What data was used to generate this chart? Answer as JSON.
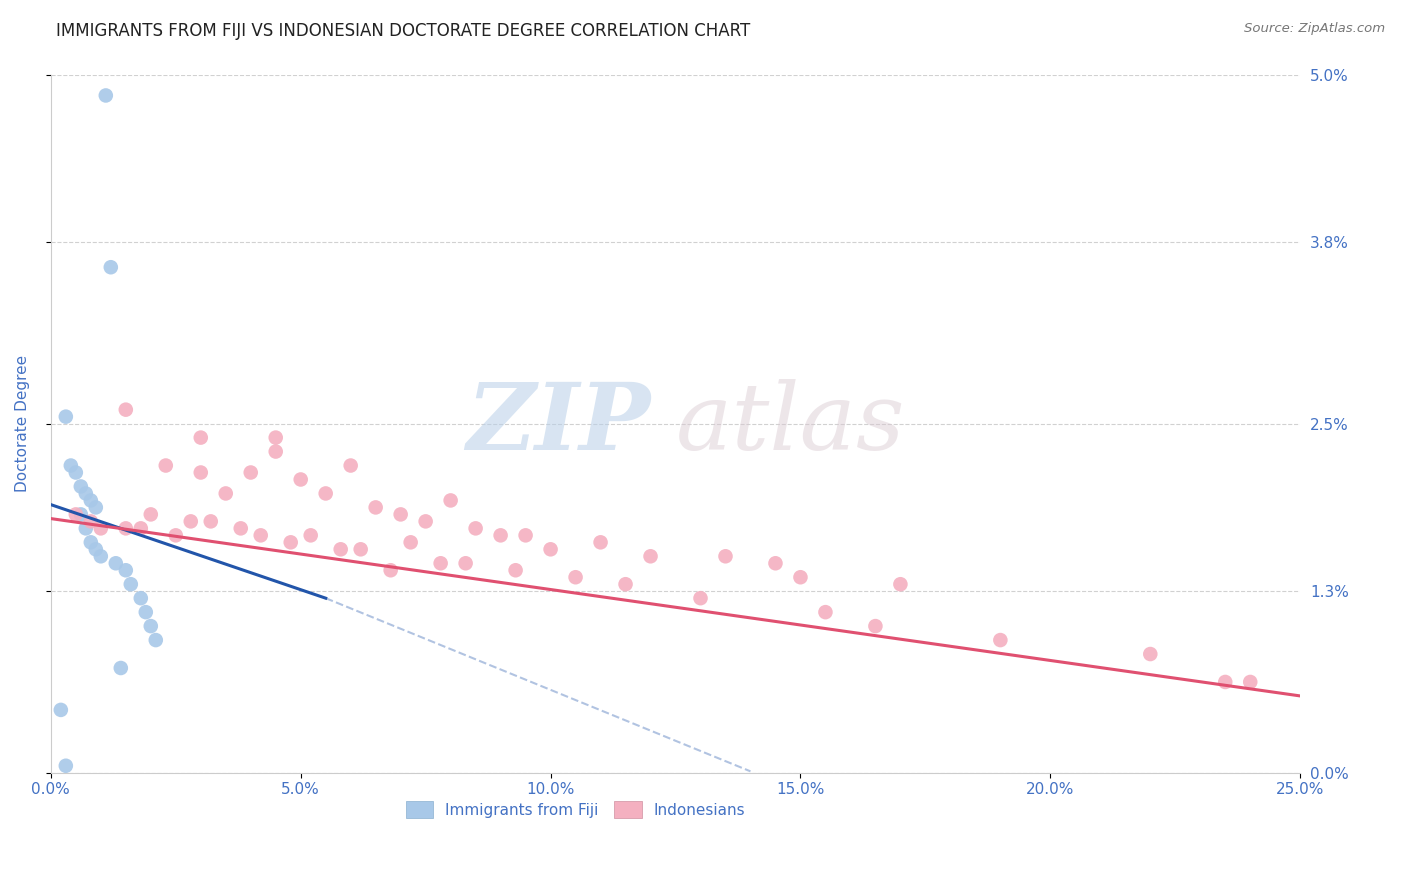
{
  "title": "IMMIGRANTS FROM FIJI VS INDONESIAN DOCTORATE DEGREE CORRELATION CHART",
  "source": "Source: ZipAtlas.com",
  "ylabel_label": "Doctorate Degree",
  "x_tick_vals": [
    0.0,
    5.0,
    10.0,
    15.0,
    20.0,
    25.0
  ],
  "y_tick_vals": [
    0.0,
    1.3,
    2.5,
    3.8,
    5.0
  ],
  "y_right_labels": [
    "0.0%",
    "1.3%",
    "2.5%",
    "3.8%",
    "5.0%"
  ],
  "xlim": [
    0.0,
    25.0
  ],
  "ylim": [
    0.0,
    5.0
  ],
  "fiji_color": "#a8c8e8",
  "indonesian_color": "#f4b0c0",
  "fiji_line_color": "#2255aa",
  "indonesian_line_color": "#e05070",
  "fiji_line_x0": 0.0,
  "fiji_line_y0": 1.92,
  "fiji_line_x1": 5.5,
  "fiji_line_y1": 1.25,
  "fiji_dash_x0": 5.5,
  "fiji_dash_y0": 1.25,
  "fiji_dash_x1": 14.0,
  "fiji_dash_y1": 0.01,
  "indonesian_line_x0": 0.0,
  "indonesian_line_y0": 1.82,
  "indonesian_line_x1": 25.0,
  "indonesian_line_y1": 0.55,
  "watermark_zip": "ZIP",
  "watermark_atlas": "atlas",
  "fiji_scatter_x": [
    1.1,
    1.2,
    0.3,
    0.4,
    0.5,
    0.6,
    0.7,
    0.8,
    0.9,
    0.6,
    0.7,
    0.8,
    0.9,
    1.0,
    1.3,
    1.5,
    1.6,
    1.8,
    1.9,
    2.0,
    2.1,
    1.4,
    0.2,
    0.3
  ],
  "fiji_scatter_y": [
    4.85,
    3.62,
    2.55,
    2.2,
    2.15,
    2.05,
    2.0,
    1.95,
    1.9,
    1.85,
    1.75,
    1.65,
    1.6,
    1.55,
    1.5,
    1.45,
    1.35,
    1.25,
    1.15,
    1.05,
    0.95,
    0.75,
    0.45,
    0.05
  ],
  "indonesian_scatter_x": [
    1.5,
    3.0,
    3.0,
    4.0,
    4.5,
    5.0,
    5.5,
    6.0,
    6.5,
    7.0,
    7.5,
    8.0,
    8.5,
    9.0,
    9.5,
    10.0,
    11.0,
    12.0,
    13.5,
    14.5,
    15.0,
    17.0,
    22.0,
    24.0,
    0.5,
    0.8,
    1.0,
    1.5,
    1.8,
    2.0,
    2.5,
    2.8,
    3.2,
    3.8,
    4.2,
    4.8,
    5.2,
    5.8,
    6.2,
    7.2,
    7.8,
    8.3,
    9.3,
    10.5,
    11.5,
    13.0,
    15.5,
    16.5,
    19.0,
    23.5,
    2.3,
    3.5,
    4.5,
    6.8
  ],
  "indonesian_scatter_y": [
    2.6,
    2.4,
    2.15,
    2.15,
    2.3,
    2.1,
    2.0,
    2.2,
    1.9,
    1.85,
    1.8,
    1.95,
    1.75,
    1.7,
    1.7,
    1.6,
    1.65,
    1.55,
    1.55,
    1.5,
    1.4,
    1.35,
    0.85,
    0.65,
    1.85,
    1.8,
    1.75,
    1.75,
    1.75,
    1.85,
    1.7,
    1.8,
    1.8,
    1.75,
    1.7,
    1.65,
    1.7,
    1.6,
    1.6,
    1.65,
    1.5,
    1.5,
    1.45,
    1.4,
    1.35,
    1.25,
    1.15,
    1.05,
    0.95,
    0.65,
    2.2,
    2.0,
    2.4,
    1.45
  ],
  "background_color": "#ffffff",
  "grid_color": "#cccccc",
  "title_color": "#222222",
  "axis_label_color": "#4472c4",
  "tick_label_color": "#4472c4",
  "legend_color": "#4472c4"
}
